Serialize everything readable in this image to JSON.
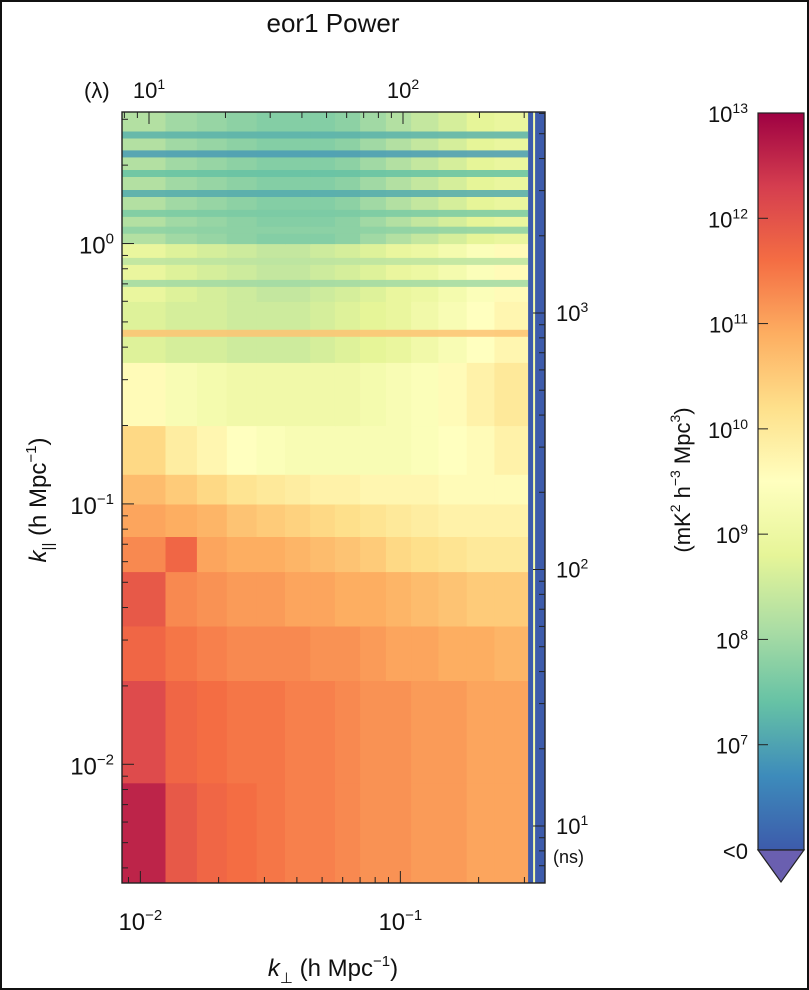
{
  "chart_data": {
    "type": "heatmap",
    "title": "eor1 Power",
    "xlabel": "k⊥ (h Mpc⁻¹)",
    "ylabel": "k|| (h Mpc⁻¹)",
    "top_axis_unit": "(λ)",
    "right_axis_unit": "(ns)",
    "colorbar_label": "(mK² h⁻³ Mpc³)",
    "x_scale": "log",
    "y_scale": "log",
    "xlim": [
      0.0085,
      0.36
    ],
    "ylim": [
      0.0035,
      3.2
    ],
    "x_ticks": [
      {
        "value": 0.01,
        "base": "10",
        "exp": "−2"
      },
      {
        "value": 0.1,
        "base": "10",
        "exp": "−1"
      }
    ],
    "y_ticks": [
      {
        "value": 0.01,
        "base": "10",
        "exp": "−2"
      },
      {
        "value": 0.1,
        "base": "10",
        "exp": "−1"
      },
      {
        "value": 1,
        "base": "10",
        "exp": "0"
      }
    ],
    "top_ticks": [
      {
        "value": 10,
        "base": "10",
        "exp": "1"
      },
      {
        "value": 100,
        "base": "10",
        "exp": "2"
      }
    ],
    "right_ticks": [
      {
        "value": 10,
        "base": "10",
        "exp": "1"
      },
      {
        "value": 100,
        "base": "10",
        "exp": "2"
      },
      {
        "value": 1000,
        "base": "10",
        "exp": "3"
      }
    ],
    "colorbar": {
      "scale": "log",
      "range": [
        1000000.0,
        10000000000000.0
      ],
      "colormap": "Spectral_r",
      "colors": [
        "#3d5bab",
        "#3d8bbb",
        "#66c2a5",
        "#abdda4",
        "#e6f598",
        "#ffffbf",
        "#fee08b",
        "#fdae61",
        "#f46d43",
        "#d53e4f",
        "#9e0142"
      ],
      "negative_color": "#6a5fb0",
      "ticks": [
        {
          "value": 10000000000000.0,
          "base": "10",
          "exp": "13"
        },
        {
          "value": 1000000000000.0,
          "base": "10",
          "exp": "12"
        },
        {
          "value": 100000000000.0,
          "base": "10",
          "exp": "11"
        },
        {
          "value": 10000000000.0,
          "base": "10",
          "exp": "10"
        },
        {
          "value": 1000000000.0,
          "base": "10",
          "exp": "9"
        },
        {
          "value": 100000000.0,
          "base": "10",
          "exp": "8"
        },
        {
          "value": 10000000.0,
          "base": "10",
          "exp": "7"
        },
        {
          "value": 1000000.0,
          "base": "<0",
          "exp": ""
        }
      ]
    },
    "grid": false,
    "legend": "colorbar right",
    "horizon_kperp": 0.31,
    "kpar_column_edges": [
      0.0085,
      0.0125,
      0.0165,
      0.0215,
      0.028,
      0.036,
      0.045,
      0.056,
      0.07,
      0.088,
      0.11,
      0.14,
      0.18,
      0.23,
      0.31
    ],
    "kpar_row_edges": [
      0.0035,
      0.0085,
      0.021,
      0.034,
      0.055,
      0.075,
      0.1,
      0.13,
      0.2,
      0.35,
      0.6,
      1.0,
      3.2
    ],
    "log10_power_blocks": [
      [
        12.6,
        11.9,
        11.7,
        11.6,
        11.5,
        11.4,
        11.4,
        11.3,
        11.2,
        11.2,
        11.1,
        11.1,
        11.0,
        11.0
      ],
      [
        12.1,
        11.7,
        11.6,
        11.5,
        11.5,
        11.4,
        11.4,
        11.3,
        11.2,
        11.2,
        11.1,
        11.1,
        11.0,
        11.0
      ],
      [
        11.7,
        11.5,
        11.4,
        11.3,
        11.3,
        11.3,
        11.2,
        11.2,
        11.1,
        11.0,
        11.0,
        10.9,
        10.9,
        10.8
      ],
      [
        11.9,
        11.3,
        11.2,
        11.1,
        11.1,
        11.0,
        11.0,
        10.9,
        10.9,
        10.8,
        10.7,
        10.6,
        10.5,
        10.5
      ],
      [
        11.3,
        11.7,
        11.0,
        10.9,
        10.9,
        10.8,
        10.7,
        10.6,
        10.5,
        10.3,
        10.2,
        10.1,
        10.0,
        10.0
      ],
      [
        11.0,
        10.9,
        10.8,
        10.6,
        10.5,
        10.4,
        10.3,
        10.2,
        10.1,
        10.0,
        9.9,
        9.8,
        9.8,
        9.8
      ],
      [
        10.7,
        10.5,
        10.3,
        10.1,
        10.0,
        9.9,
        9.8,
        9.8,
        9.7,
        9.7,
        9.7,
        9.6,
        9.6,
        9.6
      ],
      [
        10.3,
        9.9,
        9.7,
        9.5,
        9.4,
        9.3,
        9.3,
        9.3,
        9.3,
        9.3,
        9.4,
        9.5,
        9.6,
        9.8
      ],
      [
        9.6,
        9.3,
        9.2,
        9.1,
        9.1,
        9.1,
        9.1,
        9.1,
        9.2,
        9.3,
        9.4,
        9.6,
        9.8,
        10.0
      ],
      [
        8.7,
        8.6,
        8.6,
        8.5,
        8.5,
        8.5,
        8.6,
        8.7,
        8.8,
        8.9,
        9.1,
        9.3,
        9.5,
        9.7
      ],
      [
        8.9,
        8.7,
        8.6,
        8.5,
        8.4,
        8.4,
        8.5,
        8.6,
        8.7,
        8.9,
        9.0,
        9.2,
        9.4,
        9.6
      ],
      [
        8.2,
        8.0,
        7.9,
        7.8,
        7.7,
        7.7,
        7.7,
        7.8,
        8.0,
        8.2,
        8.4,
        8.6,
        8.8,
        8.9
      ]
    ],
    "stripe_bands": [
      {
        "kpar": 2.6,
        "log10_power": 7.2
      },
      {
        "kpar": 2.2,
        "log10_power": 6.9
      },
      {
        "kpar": 1.85,
        "log10_power": 7.4
      },
      {
        "kpar": 1.55,
        "log10_power": 7.1
      },
      {
        "kpar": 1.3,
        "log10_power": 7.6
      },
      {
        "kpar": 1.12,
        "log10_power": 7.8
      },
      {
        "kpar": 0.85,
        "log10_power": 8.3
      },
      {
        "kpar": 0.7,
        "log10_power": 8.0
      },
      {
        "kpar": 0.45,
        "log10_power": 10.6
      }
    ]
  }
}
